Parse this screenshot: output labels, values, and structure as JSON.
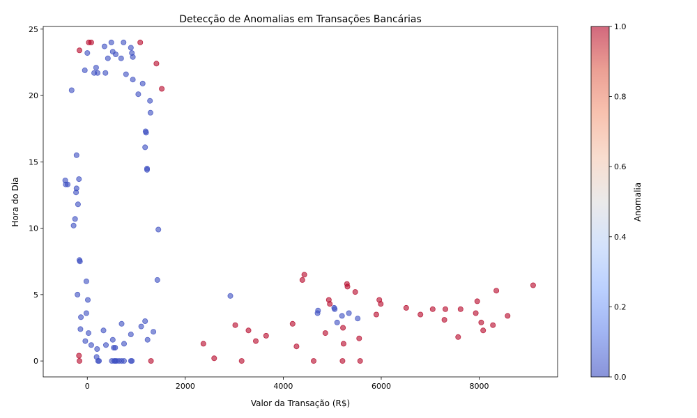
{
  "chart_data": {
    "type": "scatter",
    "title": "Detecção de Anomalias em Transações Bancárias",
    "xlabel": "Valor da Transação (R$)",
    "ylabel": "Hora do Dia",
    "xlim": [
      -900,
      9600
    ],
    "ylim": [
      -1.2,
      25.2
    ],
    "x_ticks": [
      0,
      2000,
      4000,
      6000,
      8000
    ],
    "x_tick_labels": [
      "0",
      "2000",
      "4000",
      "6000",
      "8000"
    ],
    "y_ticks": [
      0,
      5,
      10,
      15,
      20,
      25
    ],
    "y_tick_labels": [
      "0",
      "5",
      "10",
      "15",
      "20",
      "25"
    ],
    "grid": false,
    "colormap": "coolwarm",
    "colors": {
      "normal": "#3b4cc0",
      "anomaly": "#b40426"
    },
    "point_alpha": 0.6,
    "colorbar": {
      "label": "Anomalia",
      "min": 0.0,
      "max": 1.0,
      "ticks": [
        0.0,
        0.2,
        0.4,
        0.6,
        0.8,
        1.0
      ],
      "tick_labels": [
        "0.0",
        "0.2",
        "0.4",
        "0.6",
        "0.8",
        "1.0"
      ],
      "gradient_stops": [
        "#3b4cc0",
        "#6282ea",
        "#8db0fe",
        "#b8d0f9",
        "#dddcdc",
        "#f4c6af",
        "#f49a7b",
        "#de604d",
        "#b40426"
      ]
    },
    "series": [
      {
        "anomaly": 1,
        "points": [
          [
            -160,
            23.4
          ],
          [
            30,
            24
          ],
          [
            80,
            24
          ],
          [
            1080,
            24
          ],
          [
            1520,
            20.5
          ],
          [
            1410,
            22.4
          ],
          [
            -170,
            0.4
          ],
          [
            -160,
            0
          ],
          [
            1300,
            0
          ],
          [
            2370,
            1.3
          ],
          [
            2590,
            0.2
          ],
          [
            3020,
            2.7
          ],
          [
            3150,
            0
          ],
          [
            3290,
            2.3
          ],
          [
            3440,
            1.5
          ],
          [
            3650,
            1.9
          ],
          [
            4190,
            2.8
          ],
          [
            4270,
            1.1
          ],
          [
            4390,
            6.1
          ],
          [
            4430,
            6.5
          ],
          [
            4620,
            0
          ],
          [
            4860,
            2.1
          ],
          [
            4930,
            4.6
          ],
          [
            4950,
            4.3
          ],
          [
            5210,
            0
          ],
          [
            5220,
            2.5
          ],
          [
            5230,
            1.3
          ],
          [
            5300,
            5.8
          ],
          [
            5310,
            5.6
          ],
          [
            5470,
            5.2
          ],
          [
            5550,
            1.7
          ],
          [
            5570,
            0
          ],
          [
            5900,
            3.5
          ],
          [
            5960,
            4.6
          ],
          [
            5990,
            4.3
          ],
          [
            6510,
            4.0
          ],
          [
            6800,
            3.5
          ],
          [
            7050,
            3.9
          ],
          [
            7290,
            3.1
          ],
          [
            7310,
            3.9
          ],
          [
            7570,
            1.8
          ],
          [
            7620,
            3.9
          ],
          [
            7930,
            3.6
          ],
          [
            7960,
            4.5
          ],
          [
            8040,
            2.9
          ],
          [
            8080,
            2.3
          ],
          [
            8280,
            2.7
          ],
          [
            8350,
            5.3
          ],
          [
            8580,
            3.4
          ],
          [
            9100,
            5.7
          ]
        ]
      },
      {
        "anomaly": 0,
        "points": [
          [
            2920,
            4.9
          ],
          [
            4700,
            3.6
          ],
          [
            4710,
            3.8
          ],
          [
            5040,
            4.0
          ],
          [
            5050,
            3.9
          ],
          [
            5100,
            2.9
          ],
          [
            5200,
            3.4
          ],
          [
            5340,
            3.6
          ],
          [
            5520,
            3.2
          ],
          [
            1450,
            9.9
          ],
          [
            1430,
            6.1
          ],
          [
            1350,
            2.2
          ],
          [
            1230,
            1.6
          ],
          [
            1180,
            3.0
          ],
          [
            1290,
            18.7
          ],
          [
            1280,
            19.6
          ],
          [
            1200,
            17.2
          ],
          [
            1190,
            17.3
          ],
          [
            1220,
            14.5
          ],
          [
            1220,
            14.4
          ],
          [
            1180,
            16.1
          ],
          [
            1130,
            20.9
          ],
          [
            1040,
            20.1
          ],
          [
            -450,
            13.6
          ],
          [
            -400,
            13.3
          ],
          [
            -440,
            13.3
          ],
          [
            -320,
            20.4
          ],
          [
            -280,
            10.2
          ],
          [
            -250,
            10.7
          ],
          [
            -220,
            13.0
          ],
          [
            -230,
            12.7
          ],
          [
            -220,
            15.5
          ],
          [
            -190,
            11.8
          ],
          [
            -170,
            13.7
          ],
          [
            -160,
            7.6
          ],
          [
            -150,
            7.5
          ],
          [
            -200,
            5.0
          ],
          [
            -140,
            2.4
          ],
          [
            -130,
            3.3
          ],
          [
            -40,
            1.5
          ],
          [
            -20,
            3.6
          ],
          [
            -20,
            6.0
          ],
          [
            10,
            4.6
          ],
          [
            -50,
            21.9
          ],
          [
            0,
            23.2
          ],
          [
            350,
            23.7
          ],
          [
            490,
            24.0
          ],
          [
            740,
            24.0
          ],
          [
            890,
            23.6
          ],
          [
            910,
            23.2
          ],
          [
            930,
            22.9
          ],
          [
            690,
            22.8
          ],
          [
            580,
            23.1
          ],
          [
            520,
            23.3
          ],
          [
            420,
            22.8
          ],
          [
            180,
            22.1
          ],
          [
            140,
            21.7
          ],
          [
            210,
            21.7
          ],
          [
            370,
            21.7
          ],
          [
            790,
            21.6
          ],
          [
            930,
            21.2
          ],
          [
            190,
            0.3
          ],
          [
            220,
            0
          ],
          [
            240,
            0
          ],
          [
            500,
            0
          ],
          [
            550,
            0
          ],
          [
            570,
            0
          ],
          [
            600,
            0
          ],
          [
            650,
            0
          ],
          [
            700,
            0
          ],
          [
            750,
            0
          ],
          [
            890,
            0
          ],
          [
            910,
            0
          ],
          [
            750,
            1.3
          ],
          [
            540,
            1.0
          ],
          [
            570,
            1.0
          ],
          [
            520,
            1.6
          ],
          [
            380,
            1.2
          ],
          [
            200,
            0.9
          ],
          [
            80,
            1.2
          ],
          [
            25,
            2.1
          ],
          [
            890,
            2.0
          ],
          [
            1100,
            2.6
          ],
          [
            700,
            2.8
          ],
          [
            330,
            2.3
          ]
        ]
      }
    ]
  }
}
